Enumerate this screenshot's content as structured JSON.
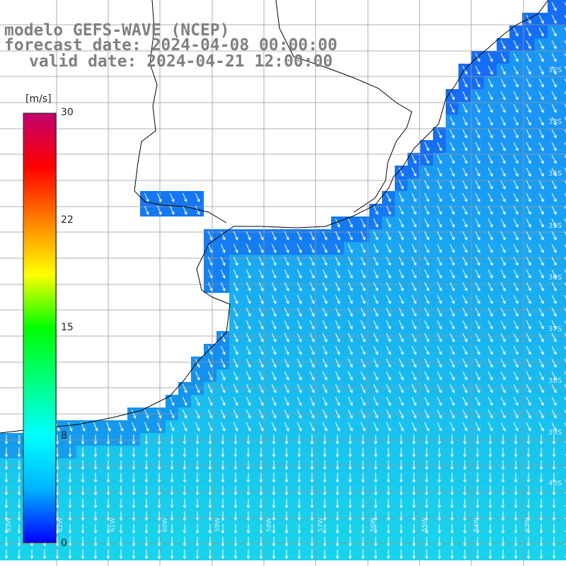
{
  "title": {
    "line1": "modelo GEFS-WAVE (NCEP)",
    "line2": "forecast date: 2024-04-08 00:00:00",
    "line3": "valid date: 2024-04-21 12:00:00"
  },
  "colorbar": {
    "unit": "[m/s]",
    "min": 0,
    "max": 30,
    "ticks": [
      "30",
      "22",
      "15",
      "8",
      "0"
    ],
    "colors": [
      "#0000ff",
      "#00b4ff",
      "#00ffff",
      "#00ff80",
      "#00ff00",
      "#ffff00",
      "#ff8000",
      "#ff0000",
      "#c00070"
    ]
  },
  "map": {
    "grid_lon": [
      "63W",
      "62W",
      "61W",
      "60W",
      "59W",
      "58W",
      "57W",
      "56W",
      "55W",
      "54W",
      "53W"
    ],
    "grid_lat": [
      "32S",
      "33S",
      "34S",
      "35S",
      "36S",
      "37S",
      "38S",
      "39S",
      "40S"
    ],
    "ocean_color": "#19b4f5",
    "land_color": "#ffffff",
    "arrow_color": "#ffffff",
    "variable": "wind speed and direction"
  }
}
